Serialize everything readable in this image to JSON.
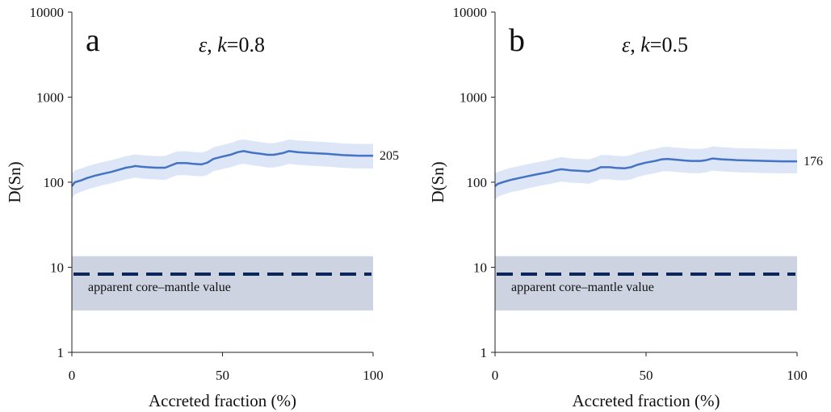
{
  "chart_data": [
    {
      "type": "line",
      "panel_label": "a",
      "title_symbol": "ε",
      "title_sep": ", ",
      "title_var": "k",
      "title_value": "=0.8",
      "xlabel": "Accreted fraction (%)",
      "ylabel": "D(Sn)",
      "xlim": [
        0,
        100
      ],
      "ylim": [
        1,
        10000
      ],
      "yscale": "log",
      "x_ticks": [
        "0",
        "50",
        "100"
      ],
      "y_ticks": [
        "1",
        "10",
        "100",
        "1000",
        "10000"
      ],
      "end_label": "205",
      "band_label": "apparent core–mantle value",
      "grid": false,
      "colors": {
        "line": "#4472c4",
        "uncertainty": "#dce6f7",
        "reference_band": "#cdd3e1",
        "reference_line": "#0b2659"
      },
      "reference": {
        "value": 8.3,
        "band": [
          3.1,
          13.5
        ]
      },
      "series": [
        {
          "x": [
            0,
            1,
            3,
            5,
            8,
            10,
            13,
            15,
            18,
            20,
            21,
            23,
            25,
            28,
            31,
            33,
            35,
            38,
            40,
            43,
            45,
            47,
            50,
            53,
            55,
            57,
            60,
            63,
            65,
            67,
            70,
            72,
            75,
            78,
            80,
            85,
            90,
            95,
            100
          ],
          "y": [
            90,
            100,
            105,
            112,
            120,
            125,
            132,
            138,
            148,
            152,
            155,
            152,
            150,
            148,
            148,
            158,
            168,
            168,
            165,
            162,
            170,
            188,
            200,
            212,
            225,
            232,
            222,
            215,
            210,
            210,
            220,
            232,
            225,
            222,
            220,
            215,
            208,
            205,
            205
          ],
          "lower": [
            64,
            72,
            77,
            82,
            88,
            92,
            97,
            101,
            108,
            111,
            113,
            111,
            109,
            108,
            106,
            114,
            121,
            121,
            119,
            117,
            122,
            135,
            143,
            151,
            160,
            165,
            158,
            153,
            149,
            149,
            156,
            164,
            160,
            157,
            156,
            152,
            147,
            145,
            145
          ],
          "upper": [
            124,
            138,
            145,
            154,
            165,
            172,
            181,
            189,
            203,
            208,
            212,
            208,
            206,
            203,
            204,
            218,
            231,
            231,
            227,
            223,
            234,
            258,
            275,
            291,
            309,
            318,
            305,
            295,
            288,
            288,
            302,
            318,
            309,
            305,
            302,
            295,
            286,
            282,
            282
          ]
        }
      ]
    },
    {
      "type": "line",
      "panel_label": "b",
      "title_symbol": "ε",
      "title_sep": ", ",
      "title_var": "k",
      "title_value": "=0.5",
      "xlabel": "Accreted fraction (%)",
      "ylabel": "D(Sn)",
      "xlim": [
        0,
        100
      ],
      "ylim": [
        1,
        10000
      ],
      "yscale": "log",
      "x_ticks": [
        "0",
        "50",
        "100"
      ],
      "y_ticks": [
        "1",
        "10",
        "100",
        "1000",
        "10000"
      ],
      "end_label": "176",
      "band_label": "apparent core–mantle value",
      "grid": false,
      "colors": {
        "line": "#4472c4",
        "uncertainty": "#dce6f7",
        "reference_band": "#cdd3e1",
        "reference_line": "#0b2659"
      },
      "reference": {
        "value": 8.3,
        "band": [
          3.1,
          13.5
        ]
      },
      "series": [
        {
          "x": [
            0,
            1,
            3,
            5,
            8,
            10,
            13,
            15,
            18,
            20,
            22,
            25,
            28,
            31,
            33,
            35,
            38,
            40,
            43,
            45,
            47,
            50,
            53,
            55,
            57,
            60,
            63,
            65,
            68,
            70,
            72,
            75,
            78,
            80,
            85,
            90,
            95,
            100
          ],
          "y": [
            90,
            96,
            101,
            106,
            112,
            116,
            122,
            126,
            132,
            138,
            142,
            138,
            136,
            134,
            140,
            150,
            150,
            147,
            146,
            150,
            160,
            170,
            178,
            185,
            188,
            184,
            180,
            178,
            178,
            182,
            190,
            186,
            184,
            182,
            180,
            178,
            176,
            176
          ],
          "lower": [
            62,
            68,
            72,
            76,
            80,
            83,
            88,
            91,
            95,
            99,
            102,
            99,
            98,
            96,
            101,
            108,
            108,
            106,
            105,
            108,
            115,
            122,
            128,
            133,
            135,
            132,
            129,
            128,
            128,
            131,
            137,
            134,
            132,
            131,
            129,
            128,
            127,
            127
          ],
          "upper": [
            126,
            133,
            140,
            147,
            155,
            161,
            169,
            174,
            183,
            191,
            197,
            191,
            188,
            186,
            194,
            208,
            208,
            204,
            202,
            208,
            222,
            236,
            247,
            257,
            261,
            255,
            250,
            247,
            247,
            252,
            264,
            258,
            255,
            252,
            250,
            247,
            244,
            244
          ]
        }
      ]
    }
  ]
}
